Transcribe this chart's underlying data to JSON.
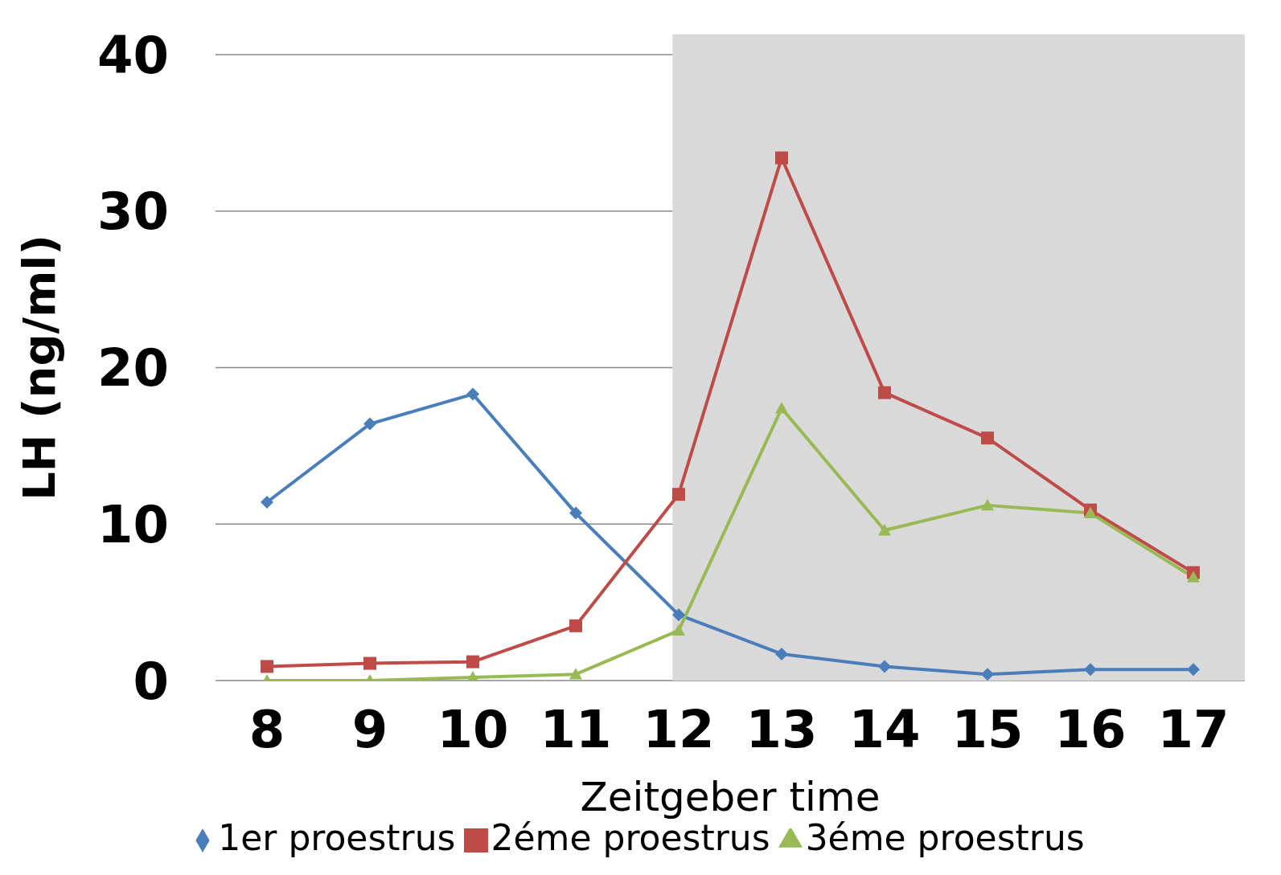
{
  "chart_data": {
    "type": "line",
    "xlabel": "Zeitgeber time",
    "ylabel": "LH (ng/ml)",
    "x": [
      8,
      9,
      10,
      11,
      12,
      13,
      14,
      15,
      16,
      17
    ],
    "series": [
      {
        "name": "1er proestrus",
        "color": "#4a7ebb",
        "marker": "diamond",
        "values": [
          11.4,
          16.4,
          18.3,
          10.7,
          4.2,
          1.7,
          0.9,
          0.4,
          0.7,
          0.7
        ]
      },
      {
        "name": "2éme proestrus",
        "color": "#be4b48",
        "marker": "square",
        "values": [
          0.9,
          1.1,
          1.2,
          3.5,
          11.9,
          33.4,
          18.4,
          15.5,
          10.9,
          6.9
        ]
      },
      {
        "name": "3éme proestrus",
        "color": "#98b954",
        "marker": "triangle",
        "values": [
          0,
          0,
          0.2,
          0.4,
          3.2,
          17.4,
          9.6,
          11.2,
          10.7,
          6.6
        ]
      }
    ],
    "xlim": [
      7.5,
      17.5
    ],
    "xticks": [
      8,
      9,
      10,
      11,
      12,
      13,
      14,
      15,
      16,
      17
    ],
    "ylim": [
      0,
      40
    ],
    "yticks": [
      0,
      10,
      20,
      30,
      40
    ],
    "grid": "y",
    "legend": "bottom",
    "line_style": "solid",
    "bands": [
      {
        "axis": "x",
        "from": 11.94,
        "to": 17.5,
        "color": "#d9d9d9"
      }
    ]
  }
}
